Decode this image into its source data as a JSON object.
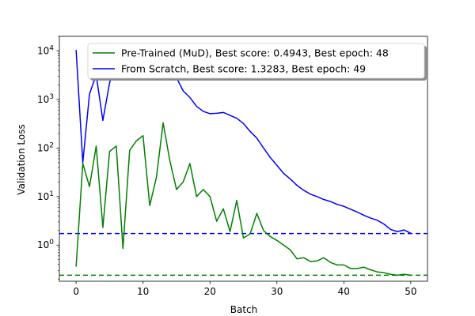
{
  "chart_data": {
    "type": "line",
    "title": "",
    "xlabel": "Batch",
    "ylabel": "Validation Loss",
    "xlim": [
      -2.5,
      52.5
    ],
    "ylim": [
      0.18,
      20000
    ],
    "yscale": "log",
    "x_ticks": [
      0,
      10,
      20,
      30,
      40,
      50
    ],
    "y_ticks": [
      {
        "value": 1,
        "label": "10^0"
      },
      {
        "value": 10,
        "label": "10^1"
      },
      {
        "value": 100,
        "label": "10^2"
      },
      {
        "value": 1000,
        "label": "10^3"
      },
      {
        "value": 10000,
        "label": "10^4"
      }
    ],
    "grid": false,
    "legend_position": "top-right",
    "series": [
      {
        "name": "Pre-Trained (MuD), Best score: 0.4943, Best epoch: 48",
        "color": "#008000",
        "x": [
          0,
          1,
          2,
          3,
          4,
          5,
          6,
          7,
          8,
          9,
          10,
          11,
          12,
          13,
          14,
          15,
          16,
          17,
          18,
          19,
          20,
          21,
          22,
          23,
          24,
          25,
          26,
          27,
          28,
          29,
          30,
          31,
          32,
          33,
          34,
          35,
          36,
          37,
          38,
          39,
          40,
          41,
          42,
          43,
          44,
          45,
          46,
          47,
          48,
          49,
          50
        ],
        "values": [
          0.36,
          48,
          16,
          110,
          2.3,
          85,
          110,
          0.85,
          90,
          140,
          180,
          6.5,
          25,
          330,
          55,
          14,
          20,
          48,
          10,
          14,
          10,
          3.1,
          5.6,
          1.9,
          8.3,
          1.4,
          1.7,
          4.5,
          2.0,
          1.5,
          1.25,
          1.0,
          0.8,
          0.52,
          0.55,
          0.46,
          0.47,
          0.55,
          0.44,
          0.39,
          0.39,
          0.33,
          0.33,
          0.35,
          0.31,
          0.28,
          0.27,
          0.25,
          0.24,
          0.25,
          0.24
        ]
      },
      {
        "name": "From Scratch, Best score: 1.3283, Best epoch: 49",
        "color": "#0000ff",
        "x": [
          0,
          1,
          2,
          3,
          4,
          5,
          6,
          7,
          8,
          9,
          10,
          11,
          12,
          13,
          14,
          15,
          16,
          17,
          18,
          19,
          20,
          21,
          22,
          23,
          24,
          25,
          26,
          27,
          28,
          29,
          30,
          31,
          32,
          33,
          34,
          35,
          36,
          37,
          38,
          39,
          40,
          41,
          42,
          43,
          44,
          45,
          46,
          47,
          48,
          49,
          50
        ],
        "values": [
          10500,
          50,
          1300,
          3200,
          370,
          2200,
          6000,
          8000,
          8000,
          8000,
          8000,
          8000,
          8000,
          5000,
          4000,
          2800,
          1500,
          1100,
          720,
          570,
          510,
          520,
          540,
          470,
          410,
          320,
          220,
          160,
          100,
          64,
          44,
          30,
          23,
          17,
          13.5,
          11.2,
          10,
          8.7,
          7.9,
          6.9,
          6.3,
          5.5,
          4.8,
          4.1,
          3.6,
          3.25,
          2.7,
          2.1,
          1.9,
          2.05,
          1.75
        ]
      }
    ],
    "reference_lines": [
      {
        "orientation": "horizontal",
        "value": 1.73,
        "color": "#0000ff",
        "style": "dashed"
      },
      {
        "orientation": "horizontal",
        "value": 0.24,
        "color": "#008000",
        "style": "dashed"
      }
    ]
  }
}
